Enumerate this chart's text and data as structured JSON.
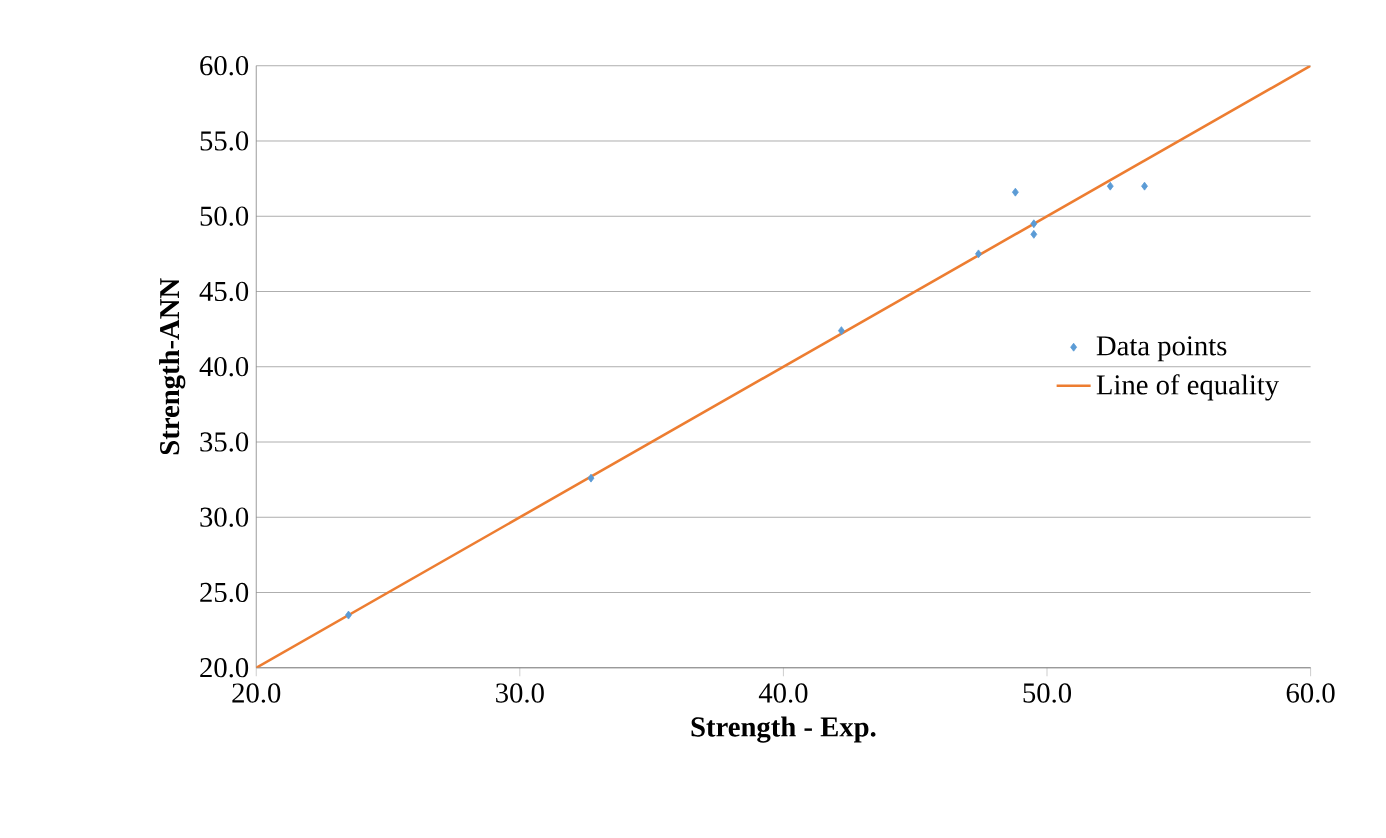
{
  "chart_data": {
    "type": "scatter",
    "xlabel": "Strength - Exp.",
    "ylabel": "Strength-ANN",
    "xlim": [
      20,
      60
    ],
    "ylim": [
      20,
      60
    ],
    "xticks": [
      {
        "value": 20,
        "label": "20.0"
      },
      {
        "value": 30,
        "label": "30.0"
      },
      {
        "value": 40,
        "label": "40.0"
      },
      {
        "value": 50,
        "label": "50.0"
      },
      {
        "value": 60,
        "label": "60.0"
      }
    ],
    "yticks": [
      {
        "value": 20,
        "label": "20.0"
      },
      {
        "value": 25,
        "label": "25.0"
      },
      {
        "value": 30,
        "label": "30.0"
      },
      {
        "value": 35,
        "label": "35.0"
      },
      {
        "value": 40,
        "label": "40.0"
      },
      {
        "value": 45,
        "label": "45.0"
      },
      {
        "value": 50,
        "label": "50.0"
      },
      {
        "value": 55,
        "label": "55.0"
      },
      {
        "value": 60,
        "label": "60.0"
      }
    ],
    "grid": "y",
    "legend": "right",
    "series": [
      {
        "name": "Data points",
        "marker": "diamond",
        "color": "#5b9bd5",
        "x": [
          23.5,
          32.7,
          42.2,
          47.4,
          48.8,
          49.5,
          49.5,
          52.4,
          53.7
        ],
        "values": [
          23.5,
          32.6,
          42.4,
          47.5,
          51.6,
          49.5,
          48.8,
          52.0,
          52.0
        ]
      },
      {
        "name": "Line of equality",
        "type": "line",
        "marker": "none",
        "color": "#ed7d31",
        "x": [
          20,
          60
        ],
        "values": [
          20,
          60
        ]
      }
    ]
  }
}
